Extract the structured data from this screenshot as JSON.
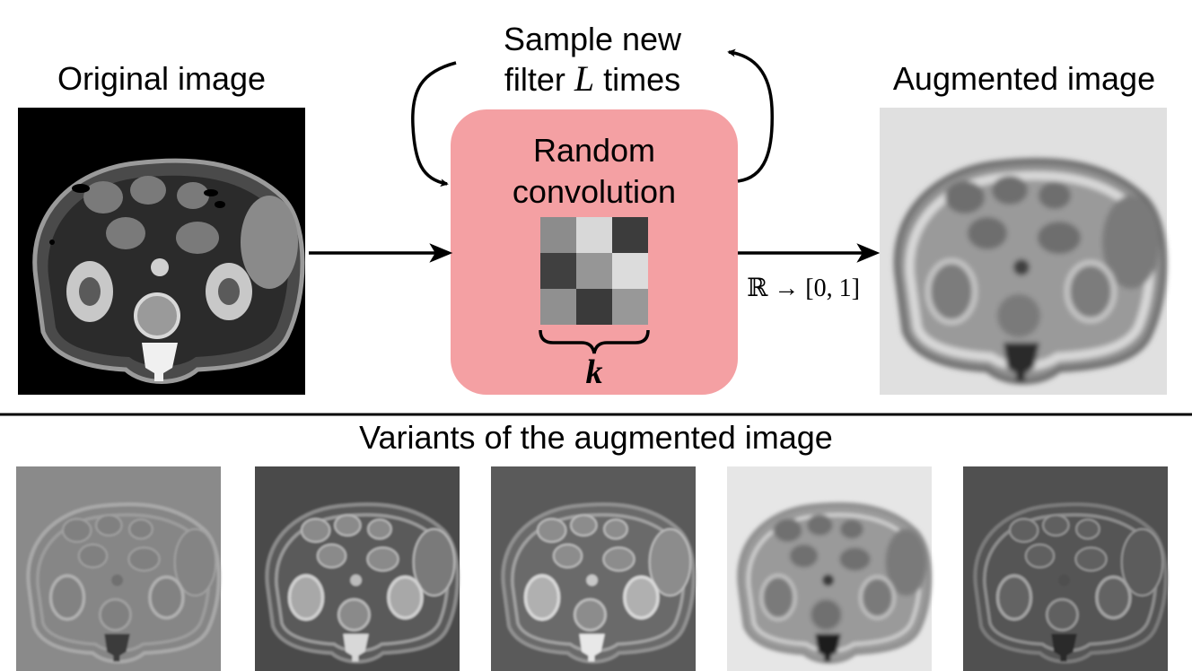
{
  "original": {
    "title": "Original image"
  },
  "augmented": {
    "title": "Augmented image"
  },
  "loop": {
    "line1": "Sample new",
    "line2_prefix": "filter",
    "line2_var": "L",
    "line2_suffix": "times"
  },
  "conv": {
    "line1": "Random",
    "line2": "convolution",
    "kernel_label": "k",
    "color": "#f4a0a3",
    "kernel_cells": [
      "#8c8c8c",
      "#d8d8d8",
      "#3c3c3c",
      "#404040",
      "#969696",
      "#dcdcdc",
      "#909090",
      "#3a3a3a",
      "#989898"
    ]
  },
  "mapping": {
    "label": "ℝ → [0, 1]"
  },
  "variants": {
    "title": "Variants of the augmented image",
    "items": [
      {
        "background": "#8a8a8a",
        "tone": "edge-light"
      },
      {
        "background": "#4a4a4a",
        "tone": "dark"
      },
      {
        "background": "#5a5a5a",
        "tone": "mid-dark"
      },
      {
        "background": "#e6e6e6",
        "tone": "light"
      },
      {
        "background": "#505050",
        "tone": "edge-dark"
      }
    ]
  }
}
